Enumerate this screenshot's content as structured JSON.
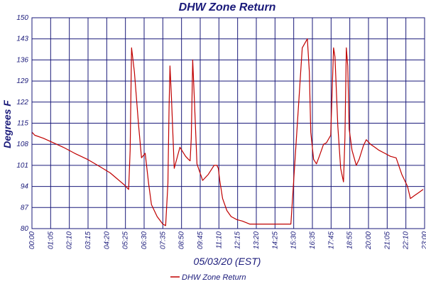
{
  "chart_data": {
    "type": "line",
    "title": "DHW Zone Return",
    "xlabel": "05/03/20 (EST)",
    "ylabel": "Degrees F",
    "ylim": [
      80,
      150
    ],
    "xlim": [
      0,
      1380
    ],
    "yticks": [
      80,
      87,
      94,
      101,
      108,
      115,
      122,
      129,
      136,
      143,
      150
    ],
    "ytick_labels": [
      "80",
      "87",
      "94",
      "101",
      "108",
      "115",
      "122",
      "129",
      "136",
      "143",
      "150"
    ],
    "xtick_labels": [
      "00:00",
      "01:05",
      "02:10",
      "03:15",
      "04:20",
      "05:25",
      "06:30",
      "07:35",
      "08:50",
      "09:45",
      "11:10",
      "12:15",
      "13:20",
      "14:25",
      "15:30",
      "16:35",
      "17:45",
      "18:55",
      "20:00",
      "21:05",
      "22:10",
      "23:00"
    ],
    "grid": true,
    "legend_position": "bottom-center",
    "series": [
      {
        "name": "DHW Zone Return",
        "color": "#c00000",
        "x": [
          0,
          10,
          40,
          75,
          110,
          150,
          195,
          240,
          275,
          300,
          325,
          340,
          345,
          350,
          360,
          375,
          385,
          398,
          410,
          420,
          440,
          460,
          470,
          478,
          482,
          485,
          490,
          500,
          520,
          530,
          540,
          545,
          550,
          556,
          560,
          565,
          570,
          580,
          600,
          620,
          640,
          650,
          655,
          660,
          670,
          685,
          700,
          720,
          740,
          765,
          790,
          820,
          860,
          910,
          950,
          968,
          975,
          980,
          990,
          1000,
          1010,
          1025,
          1035,
          1050,
          1060,
          1065,
          1075,
          1085,
          1095,
          1100,
          1105,
          1110,
          1115,
          1125,
          1140,
          1150,
          1165,
          1175,
          1180,
          1190,
          1205,
          1220,
          1240,
          1260,
          1280,
          1300,
          1320,
          1330,
          1345,
          1360,
          1375
        ],
        "y": [
          112,
          111,
          110,
          108.5,
          107,
          105,
          103,
          100.5,
          98.5,
          96.5,
          94.5,
          93,
          106,
          140,
          132,
          114,
          103.5,
          105,
          95,
          88,
          84,
          81.5,
          81,
          95,
          120,
          134,
          124,
          100,
          107,
          105.5,
          104,
          103.5,
          103,
          102.5,
          110,
          136,
          125,
          101.5,
          96,
          98,
          101,
          101,
          100,
          96,
          90,
          86,
          84,
          83,
          82.5,
          81.5,
          81.5,
          81.5,
          81.5,
          81.5,
          140,
          143,
          132,
          112,
          103,
          101.5,
          104,
          108,
          108.5,
          111,
          140,
          137,
          114,
          100,
          95.5,
          110,
          140,
          134,
          113,
          106,
          101,
          103,
          107.5,
          109.5,
          109,
          108,
          107,
          106,
          105,
          104,
          103.5,
          98,
          94,
          90,
          91,
          92,
          93
        ]
      }
    ]
  }
}
